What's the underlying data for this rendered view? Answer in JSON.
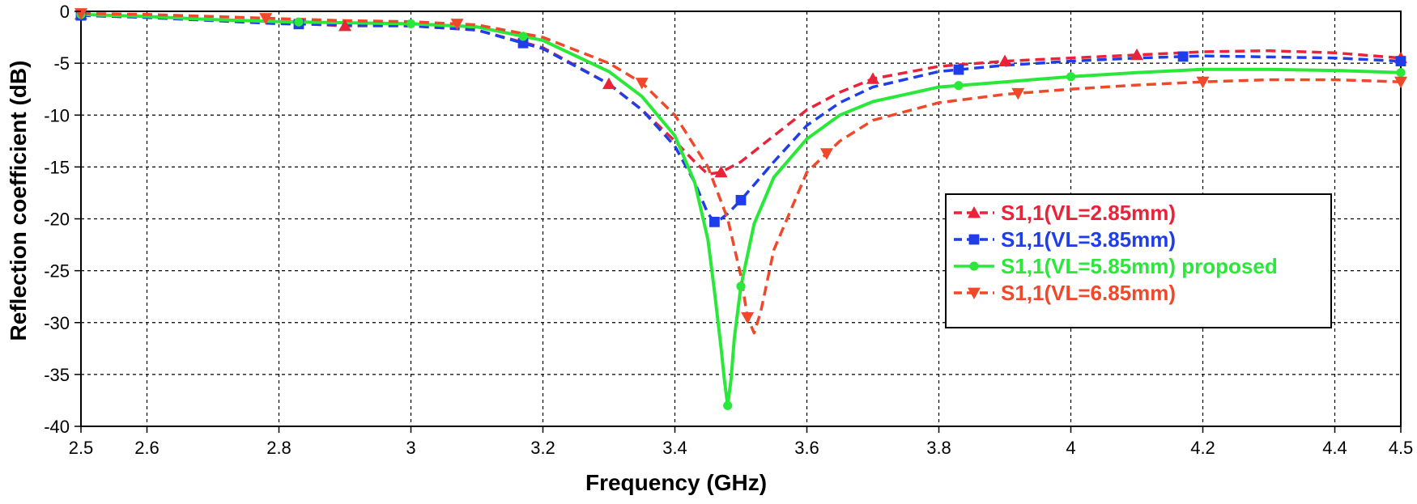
{
  "chart_data": {
    "type": "line",
    "title": "",
    "xlabel": "Frequency (GHz)",
    "ylabel": "Reflection coefficient (dB)",
    "xlim": [
      2.5,
      4.5
    ],
    "ylim": [
      -40,
      0
    ],
    "grid": true,
    "legend_position": "center-right",
    "x_ticks": [
      2.5,
      2.6,
      2.8,
      3,
      3.2,
      3.4,
      3.6,
      3.8,
      4,
      4.2,
      4.4,
      4.5
    ],
    "x_tick_labels": [
      "2.5",
      "2.6",
      "2.8",
      "3",
      "3.2",
      "3.4",
      "3.6",
      "3.8",
      "4",
      "4.2",
      "4.4",
      "4.5"
    ],
    "y_ticks": [
      0,
      -5,
      -10,
      -15,
      -20,
      -25,
      -30,
      -35,
      -40
    ],
    "y_tick_labels": [
      "0",
      "-5",
      "-10",
      "-15",
      "-20",
      "-25",
      "-30",
      "-35",
      "-40"
    ],
    "series": [
      {
        "name": "S1,1(VL=2.85mm)",
        "color": "#e8233a",
        "dash": true,
        "marker": "triangle-up",
        "marker_x": [
          2.5,
          2.9,
          3.3,
          3.47,
          3.7,
          3.9,
          4.1,
          4.5
        ],
        "x": [
          2.5,
          2.6,
          2.7,
          2.8,
          2.9,
          3.0,
          3.1,
          3.2,
          3.3,
          3.35,
          3.4,
          3.43,
          3.45,
          3.47,
          3.5,
          3.55,
          3.6,
          3.65,
          3.7,
          3.8,
          3.9,
          4.0,
          4.1,
          4.2,
          4.3,
          4.4,
          4.5
        ],
        "y": [
          -0.3,
          -0.5,
          -0.8,
          -1.1,
          -1.4,
          -1.4,
          -1.8,
          -3.5,
          -7.0,
          -9.5,
          -12.5,
          -14.5,
          -15.7,
          -15.5,
          -14.5,
          -12.0,
          -9.5,
          -7.8,
          -6.5,
          -5.3,
          -4.8,
          -4.5,
          -4.2,
          -3.9,
          -3.8,
          -4.0,
          -4.5
        ]
      },
      {
        "name": "S1,1(VL=3.85mm)",
        "color": "#1f3ee8",
        "dash": true,
        "marker": "square",
        "marker_x": [
          2.5,
          2.83,
          3.17,
          3.46,
          3.5,
          3.83,
          4.17,
          4.5
        ],
        "x": [
          2.5,
          2.6,
          2.7,
          2.8,
          2.9,
          3.0,
          3.1,
          3.2,
          3.3,
          3.35,
          3.4,
          3.43,
          3.45,
          3.46,
          3.47,
          3.48,
          3.5,
          3.55,
          3.6,
          3.65,
          3.7,
          3.8,
          3.9,
          4.0,
          4.1,
          4.2,
          4.3,
          4.4,
          4.5
        ],
        "y": [
          -0.4,
          -0.6,
          -0.9,
          -1.2,
          -1.3,
          -1.4,
          -1.8,
          -3.6,
          -7.0,
          -9.5,
          -13.0,
          -16.5,
          -19.5,
          -20.3,
          -20.0,
          -19.5,
          -18.2,
          -14.5,
          -11.0,
          -8.8,
          -7.3,
          -5.8,
          -5.2,
          -4.8,
          -4.5,
          -4.3,
          -4.4,
          -4.5,
          -4.8
        ]
      },
      {
        "name": "S1,1(VL=5.85mm) proposed",
        "color": "#2ae83a",
        "dash": false,
        "marker": "circle",
        "marker_x": [
          2.5,
          2.83,
          3.0,
          3.17,
          3.48,
          3.5,
          3.83,
          4.0,
          4.5
        ],
        "x": [
          2.5,
          2.6,
          2.7,
          2.8,
          2.9,
          3.0,
          3.1,
          3.2,
          3.3,
          3.35,
          3.4,
          3.43,
          3.45,
          3.46,
          3.47,
          3.475,
          3.48,
          3.485,
          3.49,
          3.5,
          3.52,
          3.55,
          3.6,
          3.65,
          3.7,
          3.8,
          3.9,
          4.0,
          4.1,
          4.2,
          4.3,
          4.4,
          4.5
        ],
        "y": [
          -0.3,
          -0.5,
          -0.8,
          -1.0,
          -1.1,
          -1.2,
          -1.5,
          -2.8,
          -5.8,
          -8.2,
          -12.0,
          -16.5,
          -22.0,
          -27.0,
          -32.5,
          -35.5,
          -38.0,
          -35.5,
          -31.5,
          -26.5,
          -20.5,
          -16.0,
          -12.3,
          -10.0,
          -8.7,
          -7.3,
          -6.8,
          -6.3,
          -5.9,
          -5.6,
          -5.6,
          -5.7,
          -5.9
        ]
      },
      {
        "name": "S1,1(VL=6.85mm)",
        "color": "#f0482a",
        "dash": true,
        "marker": "triangle-down",
        "marker_x": [
          2.5,
          2.78,
          3.07,
          3.35,
          3.51,
          3.63,
          3.92,
          4.2,
          4.5
        ],
        "x": [
          2.5,
          2.6,
          2.7,
          2.8,
          2.9,
          3.0,
          3.1,
          3.2,
          3.3,
          3.35,
          3.4,
          3.45,
          3.48,
          3.5,
          3.51,
          3.52,
          3.53,
          3.55,
          3.6,
          3.65,
          3.7,
          3.8,
          3.9,
          4.0,
          4.1,
          4.2,
          4.3,
          4.4,
          4.5
        ],
        "y": [
          -0.2,
          -0.3,
          -0.5,
          -0.7,
          -0.9,
          -1.0,
          -1.3,
          -2.5,
          -5.0,
          -6.9,
          -10.0,
          -15.0,
          -20.0,
          -25.5,
          -29.5,
          -31.0,
          -29.0,
          -23.0,
          -15.5,
          -12.5,
          -10.5,
          -8.8,
          -8.0,
          -7.5,
          -7.1,
          -6.8,
          -6.6,
          -6.6,
          -6.8
        ]
      }
    ]
  }
}
